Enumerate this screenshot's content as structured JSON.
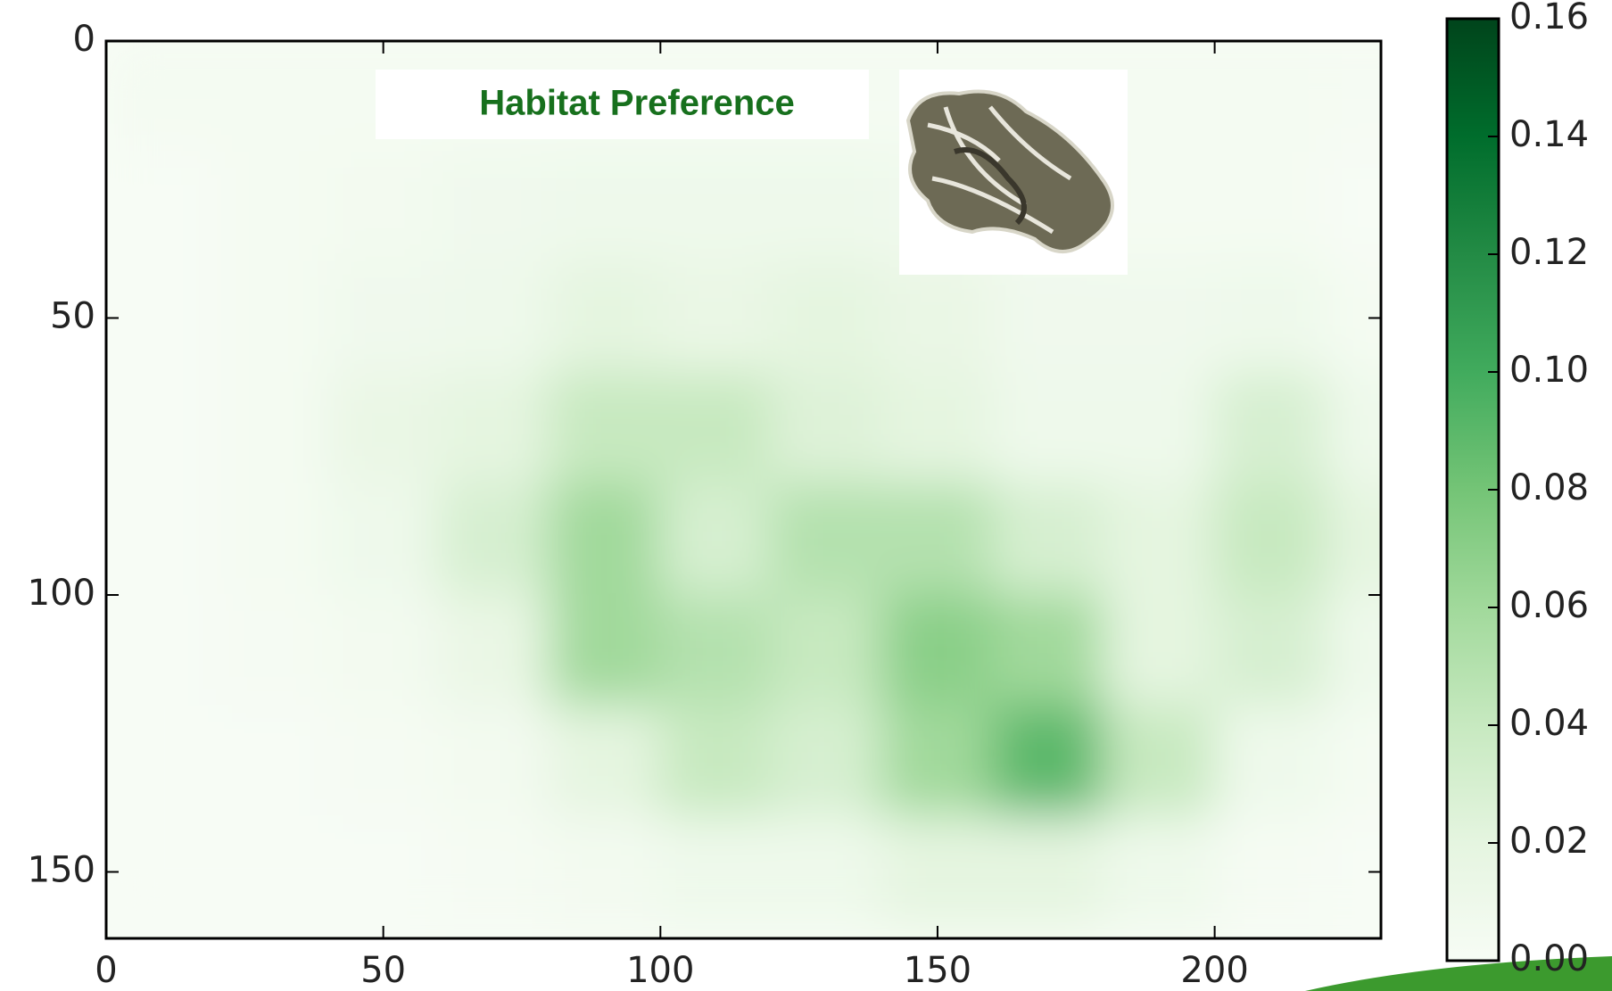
{
  "chart_data": {
    "type": "heatmap",
    "title": "Habitat Preference",
    "x": [
      10,
      30,
      50,
      70,
      90,
      110,
      130,
      150,
      170,
      190,
      210,
      230
    ],
    "y": [
      10,
      30,
      50,
      70,
      90,
      110,
      130,
      150
    ],
    "values": [
      [
        0.003,
        0.003,
        0.003,
        0.003,
        0.003,
        0.003,
        0.003,
        0.003,
        0.003,
        0.003,
        0.003,
        0.002
      ],
      [
        0,
        0.003,
        0.005,
        0.008,
        0.01,
        0.01,
        0.01,
        0.008,
        0.005,
        0.003,
        0.003,
        0
      ],
      [
        0,
        0.003,
        0.008,
        0.01,
        0.02,
        0.015,
        0.02,
        0.015,
        0.008,
        0.008,
        0.01,
        0.003
      ],
      [
        0,
        0.003,
        0.015,
        0.02,
        0.04,
        0.04,
        0.025,
        0.02,
        0.01,
        0.01,
        0.03,
        0.01
      ],
      [
        0,
        0.003,
        0.01,
        0.03,
        0.06,
        0.03,
        0.05,
        0.05,
        0.03,
        0.02,
        0.04,
        0.02
      ],
      [
        0,
        0.002,
        0.005,
        0.015,
        0.06,
        0.05,
        0.04,
        0.07,
        0.06,
        0.02,
        0.03,
        0.01
      ],
      [
        0,
        0,
        0.002,
        0.005,
        0.02,
        0.04,
        0.03,
        0.06,
        0.09,
        0.04,
        0.01,
        0.003
      ],
      [
        0,
        0,
        0,
        0.002,
        0.005,
        0.01,
        0.01,
        0.02,
        0.02,
        0.01,
        0.002,
        0
      ]
    ],
    "xlim": [
      0,
      230
    ],
    "ylim": [
      0,
      162
    ],
    "xticks": [
      0,
      50,
      100,
      150,
      200
    ],
    "yticks": [
      0,
      50,
      100,
      150
    ],
    "colormap": "Greens",
    "clim": [
      0,
      0.16
    ],
    "cticks": [
      {
        "value": 0,
        "label": "0.00"
      },
      0.02,
      0.04,
      0.06,
      0.08,
      {
        "value": 0.1,
        "label": "0.10"
      },
      0.12,
      0.14,
      0.16
    ]
  }
}
